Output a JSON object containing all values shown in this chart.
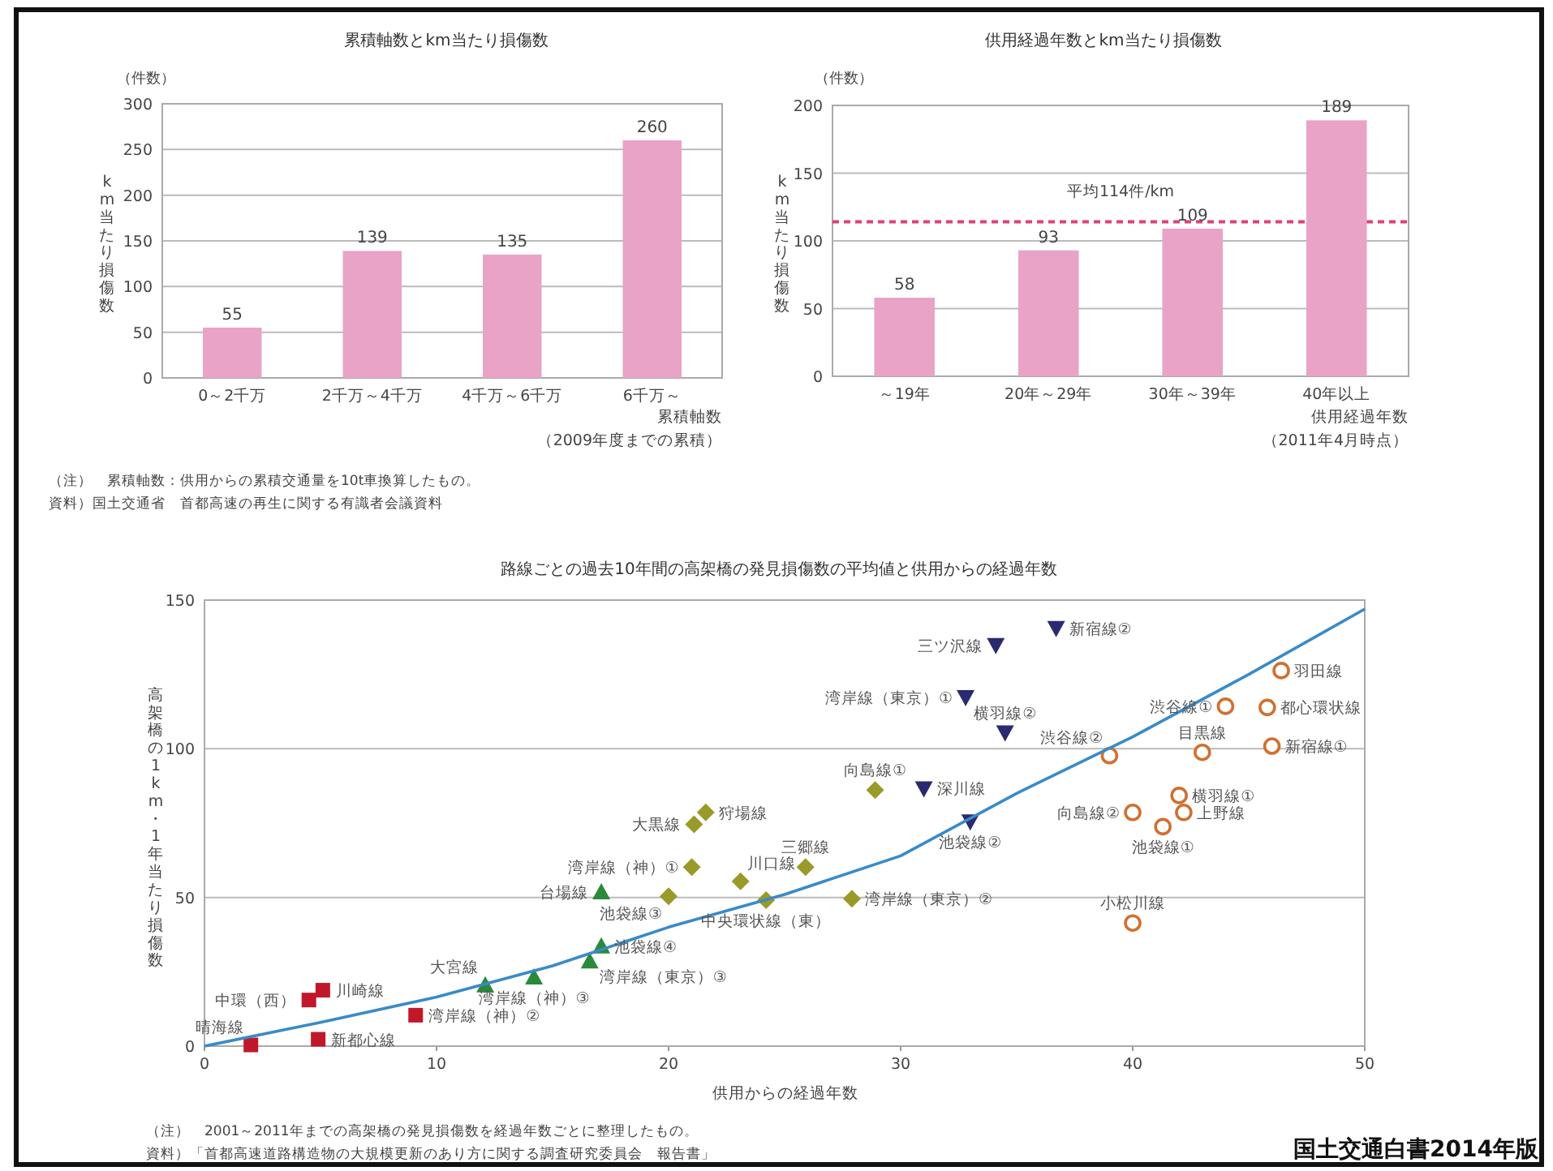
{
  "chart_data": [
    {
      "type": "bar",
      "title": "累積軸数とkm当たり損傷数",
      "ylabel": "km当たり損傷数",
      "xlabel": "累積軸数（2009年度までの累積）",
      "categories": [
        "0～2千万",
        "2千万～4千万",
        "4千万～6千万",
        "6千万～"
      ],
      "values": [
        55,
        139,
        135,
        260
      ],
      "color": "#e9a3c6",
      "ylim": [
        0,
        300
      ],
      "yticks": [
        0,
        50,
        100,
        150,
        200,
        250,
        300
      ],
      "grid": "y",
      "data_labels": true,
      "annotations": [
        "（件数）",
        "（注）　累積軸数：供用からの累積交通量を10t車換算したもの。",
        "資料）国土交通省　首都高速の再生に関する有識者会議資料"
      ]
    },
    {
      "type": "bar",
      "title": "供用経過年数とkm当たり損傷数",
      "ylabel": "km当たり損傷数",
      "xlabel": "供用経過年数（2011年4月時点）",
      "categories": [
        "～19年",
        "20年～29年",
        "30年～39年",
        "40年以上"
      ],
      "values": [
        58,
        93,
        109,
        189
      ],
      "color": "#e9a3c6",
      "ylim": [
        0,
        200
      ],
      "yticks": [
        0,
        50,
        100,
        150,
        200
      ],
      "grid": "y",
      "data_labels": true,
      "ref_lines": [
        {
          "axis": "y",
          "value": 114,
          "label": "平均114件/km",
          "color": "#e0407a",
          "line_style": "dashed"
        }
      ],
      "annotations": [
        "（件数）"
      ]
    },
    {
      "type": "scatter",
      "title": "路線ごとの過去10年間の高架橋の発見損傷数の平均値と供用からの経過年数",
      "xlabel": "供用からの経過年数",
      "ylabel": "高架橋の1km・1年当たり損傷数",
      "xlim": [
        0,
        50
      ],
      "xticks": [
        0,
        10,
        20,
        30,
        40,
        50
      ],
      "ylim": [
        0,
        150
      ],
      "yticks": [
        0,
        50,
        100,
        150
      ],
      "grid": "y",
      "series": [
        {
          "color": "#c0182a",
          "marker": "square",
          "x": [
            2.0,
            4.5,
            5.1,
            4.9,
            9.1
          ],
          "values": [
            0.4,
            15.5,
            18.8,
            2.3,
            10.4
          ]
        },
        {
          "color": "#2a8a3a",
          "marker": "triangle",
          "x": [
            12.1,
            14.2,
            16.6,
            17.1,
            17.1
          ],
          "values": [
            20.5,
            23.2,
            28.6,
            33.6,
            51.8
          ]
        },
        {
          "color": "#9a9a2a",
          "marker": "diamond",
          "x": [
            21.0,
            21.1,
            21.6,
            20.0,
            23.1,
            25.9,
            24.2,
            27.9,
            28.9
          ],
          "values": [
            60.2,
            74.6,
            78.6,
            50.4,
            55.4,
            60.2,
            49.1,
            49.6,
            86.1
          ]
        },
        {
          "color": "#2a2a70",
          "marker": "triangle-down",
          "x": [
            36.7,
            34.1,
            32.8,
            34.5,
            31.0,
            33.0
          ],
          "values": [
            140.5,
            134.8,
            117.3,
            105.4,
            86.6,
            75.5
          ]
        },
        {
          "color": "#d07030",
          "marker": "circle",
          "x": [
            46.4,
            44.0,
            45.8,
            39.0,
            43.0,
            46.0,
            42.0,
            42.2,
            40.0,
            41.3,
            40.0
          ],
          "values": [
            126.3,
            114.3,
            113.9,
            97.7,
            98.8,
            100.9,
            84.3,
            78.6,
            78.6,
            73.8,
            41.4
          ]
        },
        {
          "type": "line",
          "color": "#3a8ac8",
          "x": [
            0,
            5,
            10,
            15,
            20,
            25,
            30,
            35,
            40,
            45,
            50
          ],
          "values": [
            0,
            8,
            16.5,
            27,
            40,
            51,
            64,
            85,
            104,
            125,
            147
          ]
        }
      ],
      "annotations": [
        {
          "text": "晴海線",
          "x": 2.0,
          "y": 0.4
        },
        {
          "text": "中環（西）",
          "x": 4.5,
          "y": 15.5
        },
        {
          "text": "川崎線",
          "x": 5.1,
          "y": 18.8
        },
        {
          "text": "新都心線",
          "x": 4.9,
          "y": 2.3
        },
        {
          "text": "湾岸線（神）②",
          "x": 9.1,
          "y": 10.4
        },
        {
          "text": "大宮線",
          "x": 12.1,
          "y": 20.5
        },
        {
          "text": "湾岸線（神）③",
          "x": 14.2,
          "y": 23.2
        },
        {
          "text": "湾岸線（東京）③",
          "x": 16.6,
          "y": 28.6
        },
        {
          "text": "池袋線④",
          "x": 17.1,
          "y": 33.6
        },
        {
          "text": "台場線",
          "x": 17.1,
          "y": 51.8
        },
        {
          "text": "湾岸線（神）①",
          "x": 21.0,
          "y": 60.2
        },
        {
          "text": "大黒線",
          "x": 21.1,
          "y": 74.6
        },
        {
          "text": "狩場線",
          "x": 21.6,
          "y": 78.6
        },
        {
          "text": "池袋線③",
          "x": 20.0,
          "y": 50.4
        },
        {
          "text": "川口線",
          "x": 23.1,
          "y": 55.4
        },
        {
          "text": "三郷線",
          "x": 25.9,
          "y": 60.2
        },
        {
          "text": "中央環状線（東）",
          "x": 24.2,
          "y": 49.1
        },
        {
          "text": "湾岸線（東京）②",
          "x": 27.9,
          "y": 49.6
        },
        {
          "text": "向島線①",
          "x": 28.9,
          "y": 86.1
        },
        {
          "text": "新宿線②",
          "x": 36.7,
          "y": 140.5
        },
        {
          "text": "三ツ沢線",
          "x": 34.1,
          "y": 134.8
        },
        {
          "text": "湾岸線（東京）①",
          "x": 32.8,
          "y": 117.3
        },
        {
          "text": "横羽線②",
          "x": 34.5,
          "y": 105.4
        },
        {
          "text": "深川線",
          "x": 31.0,
          "y": 86.6
        },
        {
          "text": "池袋線②",
          "x": 33.0,
          "y": 75.5
        },
        {
          "text": "羽田線",
          "x": 46.4,
          "y": 126.3
        },
        {
          "text": "渋谷線①",
          "x": 44.0,
          "y": 114.3
        },
        {
          "text": "都心環状線",
          "x": 45.8,
          "y": 113.9
        },
        {
          "text": "渋谷線②",
          "x": 39.0,
          "y": 97.7
        },
        {
          "text": "目黒線",
          "x": 43.0,
          "y": 98.8
        },
        {
          "text": "新宿線①",
          "x": 46.0,
          "y": 100.9
        },
        {
          "text": "横羽線①",
          "x": 42.0,
          "y": 84.3
        },
        {
          "text": "上野線",
          "x": 42.2,
          "y": 78.6
        },
        {
          "text": "向島線②",
          "x": 40.0,
          "y": 78.6
        },
        {
          "text": "池袋線①",
          "x": 41.3,
          "y": 73.8
        },
        {
          "text": "小松川線",
          "x": 40.0,
          "y": 41.4
        },
        "（注）　2001～2011年までの高架橋の発見損傷数を経過年数ごとに整理したもの。",
        "資料）「首都高速道路構造物の大規模更新のあり方に関する調査研究委員会　報告書」",
        "国土交通白書2014年版"
      ]
    }
  ]
}
